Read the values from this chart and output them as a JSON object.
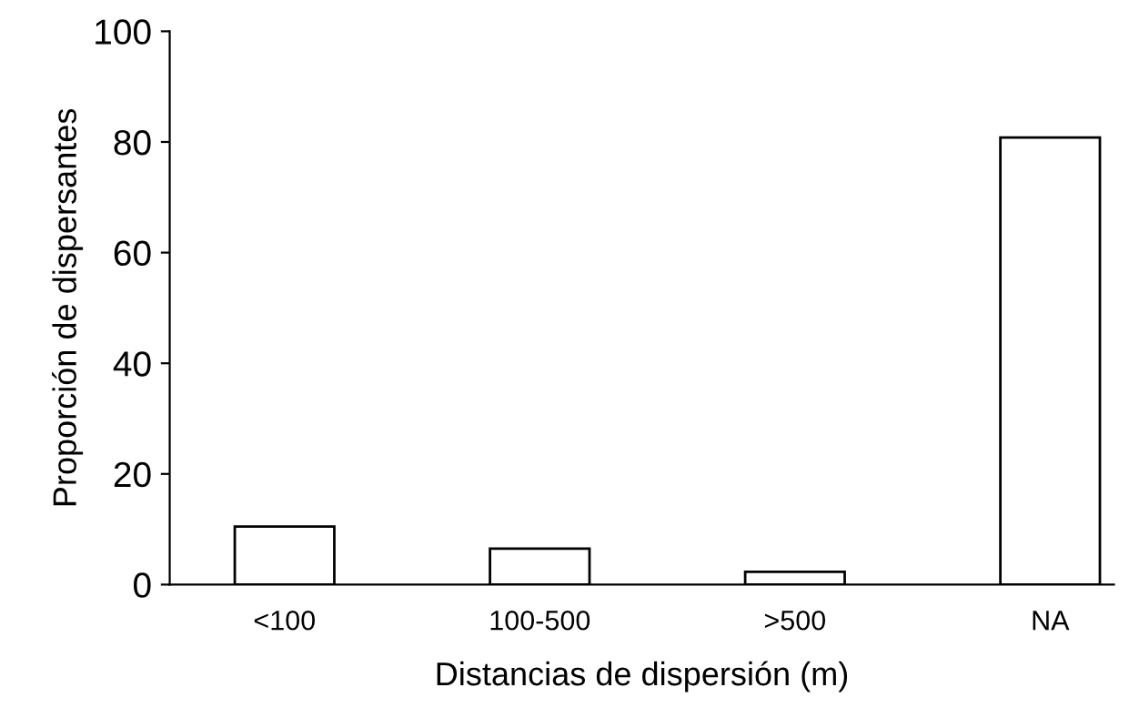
{
  "chart_data": {
    "type": "bar",
    "xlabel": "Distancias de dispersión (m)",
    "ylabel": "Proporción de dispersantes",
    "categories": [
      "<100",
      "100-500",
      ">500",
      "NA"
    ],
    "values": [
      10.5,
      6.5,
      2.3,
      80.8
    ],
    "color": "#ffffff",
    "ylim": [
      0,
      100
    ],
    "yticks": [
      0,
      20,
      40,
      60,
      80,
      100
    ],
    "grid": false,
    "legend": false
  }
}
